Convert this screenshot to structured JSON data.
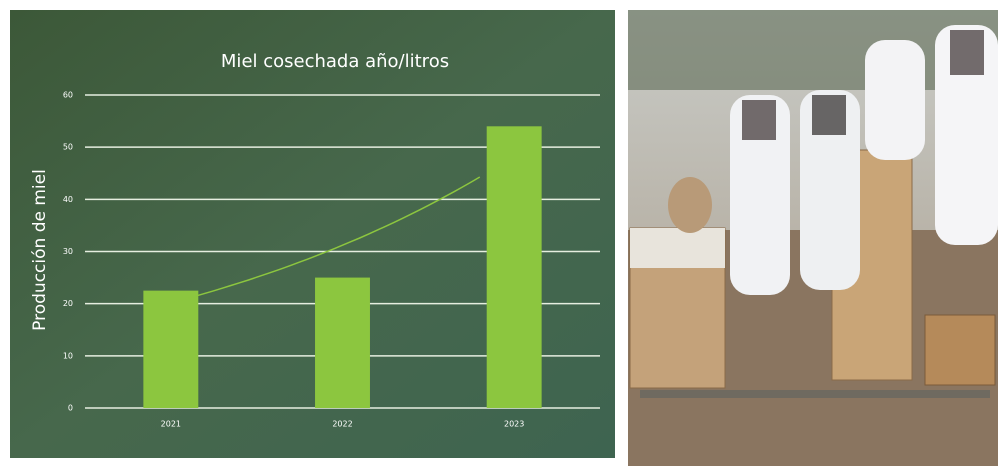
{
  "chart_data": {
    "type": "bar",
    "title": "Miel cosechada año/litros",
    "y_label": "Producción de miel",
    "categories": [
      "2021",
      "2022",
      "2023"
    ],
    "values": [
      22.5,
      25,
      54
    ],
    "color": "#8cc63f",
    "ylim": [
      0,
      60
    ],
    "yticks": [
      0,
      10,
      20,
      30,
      40,
      50,
      60
    ],
    "grid": true,
    "trendline": "exponential"
  }
}
